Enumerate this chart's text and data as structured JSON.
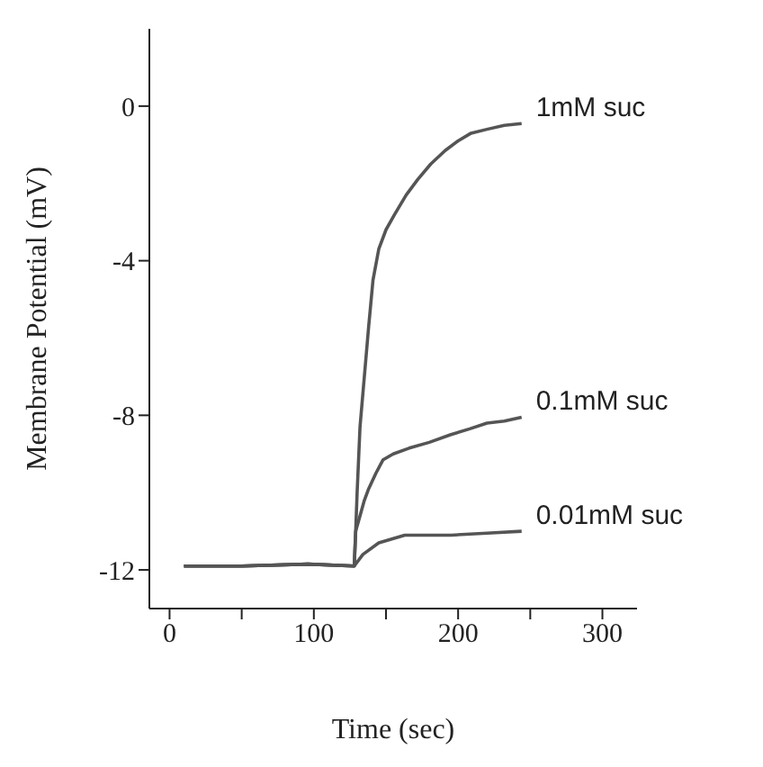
{
  "chart_data": {
    "type": "line",
    "xlabel": "Time (sec)",
    "ylabel": "Membrane Potential (mV)",
    "xlim": [
      -14,
      324
    ],
    "ylim": [
      -13,
      2
    ],
    "xticks": [
      0,
      {
        "value": 50,
        "label": null
      },
      100,
      {
        "value": 150,
        "label": null
      },
      200,
      {
        "value": 250,
        "label": null
      },
      300
    ],
    "yticks": [
      -12,
      -8,
      -4,
      0
    ],
    "grid": false,
    "legend": false,
    "marker": "none",
    "line_style": "solid",
    "series": [
      {
        "name": "1mM suc",
        "color": "#555555",
        "x": [
          10,
          50,
          96,
          128,
          129,
          130,
          132,
          135,
          138,
          141,
          145,
          150,
          156,
          164,
          172,
          181,
          191,
          200,
          209,
          220,
          232,
          244
        ],
        "values": [
          -11.9,
          -11.9,
          -11.85,
          -11.9,
          -11,
          -10,
          -8.3,
          -7,
          -5.7,
          -4.5,
          -3.7,
          -3.2,
          -2.8,
          -2.3,
          -1.9,
          -1.5,
          -1.15,
          -0.9,
          -0.7,
          -0.6,
          -0.5,
          -0.45
        ]
      },
      {
        "name": "0.1mM suc",
        "color": "#555555",
        "x": [
          10,
          50,
          96,
          128,
          129,
          132,
          135,
          138,
          143,
          148,
          155,
          166,
          180,
          195,
          208,
          220,
          232,
          244
        ],
        "values": [
          -11.9,
          -11.9,
          -11.85,
          -11.9,
          -11,
          -10.6,
          -10.2,
          -9.9,
          -9.5,
          -9.15,
          -9,
          -8.85,
          -8.7,
          -8.5,
          -8.35,
          -8.2,
          -8.15,
          -8.05
        ]
      },
      {
        "name": "0.01mM suc",
        "color": "#555555",
        "x": [
          10,
          50,
          96,
          128,
          134,
          145,
          163,
          195,
          220,
          244
        ],
        "values": [
          -11.9,
          -11.9,
          -11.85,
          -11.9,
          -11.6,
          -11.3,
          -11.1,
          -11.1,
          -11.05,
          -11
        ]
      }
    ]
  }
}
